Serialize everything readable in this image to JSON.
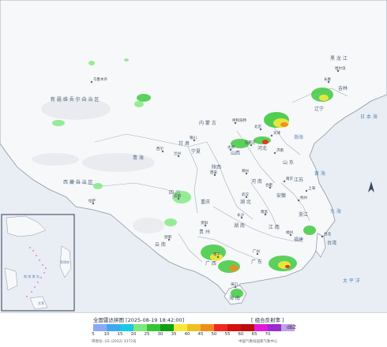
{
  "map": {
    "region_labels": [
      {
        "id": "heilongjiang",
        "text": "黑 龙 江"
      },
      {
        "id": "jilin",
        "text": "吉林"
      },
      {
        "id": "liaoning",
        "text": "辽宁"
      },
      {
        "id": "neimenggu",
        "text": "内 蒙 古"
      },
      {
        "id": "xinjiang",
        "text": "新 疆 维 吾 尔 自 治 区"
      },
      {
        "id": "xizang",
        "text": "西 藏 自 治 区"
      },
      {
        "id": "qinghai",
        "text": "青 海"
      },
      {
        "id": "gansu",
        "text": "甘 肃"
      },
      {
        "id": "ningxia",
        "text": "宁夏"
      },
      {
        "id": "shaanxi",
        "text": "陕西"
      },
      {
        "id": "shanxi",
        "text": "山西"
      },
      {
        "id": "hebei",
        "text": "河北"
      },
      {
        "id": "shandong",
        "text": "山 东"
      },
      {
        "id": "henan",
        "text": "河 南"
      },
      {
        "id": "sichuan",
        "text": "四 川"
      },
      {
        "id": "chongqing",
        "text": "重庆"
      },
      {
        "id": "hubei",
        "text": "湖 北"
      },
      {
        "id": "anhui",
        "text": "安徽"
      },
      {
        "id": "jiangsu",
        "text": "江苏"
      },
      {
        "id": "zhejiang",
        "text": "浙江"
      },
      {
        "id": "jiangxi",
        "text": "江 西"
      },
      {
        "id": "hunan",
        "text": "湖 南"
      },
      {
        "id": "guizhou",
        "text": "贵 州"
      },
      {
        "id": "yunnan",
        "text": "云 南"
      },
      {
        "id": "guangxi",
        "text": "广 西"
      },
      {
        "id": "guangdong",
        "text": "广 东"
      },
      {
        "id": "fujian",
        "text": "福建"
      },
      {
        "id": "taiwan",
        "text": "台湾"
      },
      {
        "id": "hainan",
        "text": "海 南"
      }
    ],
    "cities": [
      {
        "id": "urumqi",
        "text": "乌鲁木齐"
      },
      {
        "id": "harbin",
        "text": "哈尔滨"
      },
      {
        "id": "changchun",
        "text": "长春"
      },
      {
        "id": "hohhot",
        "text": "呼和浩特"
      },
      {
        "id": "beijing",
        "text": "北京"
      },
      {
        "id": "tianjin",
        "text": "天津"
      },
      {
        "id": "shijiazhuang",
        "text": "石家庄"
      },
      {
        "id": "taiyuan",
        "text": "太原"
      },
      {
        "id": "jinan",
        "text": "济南"
      },
      {
        "id": "yinchuan",
        "text": "银川"
      },
      {
        "id": "lanzhou",
        "text": "兰州"
      },
      {
        "id": "xining",
        "text": "西宁"
      },
      {
        "id": "xian",
        "text": "西安"
      },
      {
        "id": "zhengzhou",
        "text": "郑州"
      },
      {
        "id": "hefei",
        "text": "合肥"
      },
      {
        "id": "nanjing",
        "text": "南京"
      },
      {
        "id": "shanghai",
        "text": "上海"
      },
      {
        "id": "hangzhou",
        "text": "杭州"
      },
      {
        "id": "wuhan",
        "text": "武汉"
      },
      {
        "id": "chengdu",
        "text": "成都"
      },
      {
        "id": "lhasa",
        "text": "拉萨"
      },
      {
        "id": "changsha",
        "text": "长沙"
      },
      {
        "id": "nanchang",
        "text": "南昌"
      },
      {
        "id": "fuzhou",
        "text": "福州"
      },
      {
        "id": "taipei",
        "text": "台北"
      },
      {
        "id": "guangzhou",
        "text": "广州"
      },
      {
        "id": "nanning",
        "text": "南宁"
      },
      {
        "id": "haikou",
        "text": "海口"
      },
      {
        "id": "guiyang",
        "text": "贵阳"
      },
      {
        "id": "kunming",
        "text": "昆明"
      }
    ],
    "seas": [
      {
        "id": "bohai",
        "text": "渤海"
      },
      {
        "id": "yellow_sea",
        "text": "黄 海"
      },
      {
        "id": "east_china_sea",
        "text": "东 海"
      },
      {
        "id": "pacific",
        "text": "太 平 洋"
      },
      {
        "id": "sea_of_japan",
        "text": "日 本 海"
      }
    ],
    "inset_labels": [
      {
        "id": "south_china_sea",
        "text": "南 海 诸 岛"
      },
      {
        "id": "wenlai",
        "text": "文莱"
      },
      {
        "id": "feilubin",
        "text": "菲律宾"
      }
    ],
    "colors": {
      "land": "#f7f8fa",
      "sea": "#e8eef4",
      "border": "#8b96a3",
      "inset_border": "#2b3b4f"
    }
  },
  "footer": {
    "title": "全国雷达拼图 [2025-08-19 18:42:00]",
    "product": "[ 组合反射率 ]",
    "unit": "dBZ",
    "approval": "审图号: GS (2022) 3372号",
    "credit": "中国气象局国家气象中心",
    "legend": [
      {
        "value": "5",
        "color": "#8aaaf5"
      },
      {
        "value": "10",
        "color": "#3fa7f0"
      },
      {
        "value": "15",
        "color": "#18c8e6"
      },
      {
        "value": "20",
        "color": "#7de87d"
      },
      {
        "value": "25",
        "color": "#34c634"
      },
      {
        "value": "30",
        "color": "#10a010"
      },
      {
        "value": "35",
        "color": "#f5e93a"
      },
      {
        "value": "40",
        "color": "#eec020"
      },
      {
        "value": "45",
        "color": "#ee8c1f"
      },
      {
        "value": "50",
        "color": "#f0281e"
      },
      {
        "value": "55",
        "color": "#d60f0f"
      },
      {
        "value": "60",
        "color": "#bc0c0c"
      },
      {
        "value": "65",
        "color": "#e21ad6"
      },
      {
        "value": "70",
        "color": "#9a2bd3"
      },
      {
        "value": "",
        "color": "#c0a0e8"
      }
    ]
  }
}
